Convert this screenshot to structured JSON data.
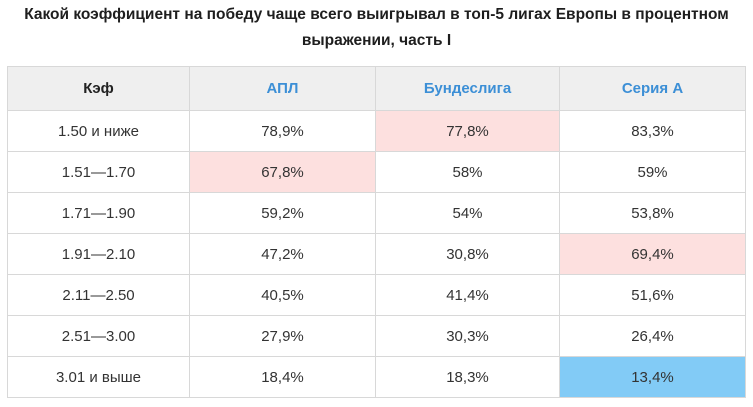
{
  "title": "Какой коэффициент на победу чаще всего выигрывал в топ-5 лигах Европы в процентном выражении, часть I",
  "headers": [
    "Кэф",
    "АПЛ",
    "Бундеслига",
    "Серия А"
  ],
  "rows": [
    {
      "odds": "1.50 и ниже",
      "values": [
        "78,9%",
        "77,8%",
        "83,3%"
      ]
    },
    {
      "odds": "1.51—1.70",
      "values": [
        "67,8%",
        "58%",
        "59%"
      ]
    },
    {
      "odds": "1.71—1.90",
      "values": [
        "59,2%",
        "54%",
        "53,8%"
      ]
    },
    {
      "odds": "1.91—2.10",
      "values": [
        "47,2%",
        "30,8%",
        "69,4%"
      ]
    },
    {
      "odds": "2.11—2.50",
      "values": [
        "40,5%",
        "41,4%",
        "51,6%"
      ]
    },
    {
      "odds": "2.51—3.00",
      "values": [
        "27,9%",
        "30,3%",
        "26,4%"
      ]
    },
    {
      "odds": "3.01 и выше",
      "values": [
        "18,4%",
        "18,3%",
        "13,4%"
      ]
    }
  ],
  "colors": {
    "header_bg": "#efefef",
    "league_header_text": "#3c8fd6",
    "highlight_pink": "#fde0df",
    "highlight_blue": "#82cbf6",
    "border": "#d8d8d8"
  }
}
